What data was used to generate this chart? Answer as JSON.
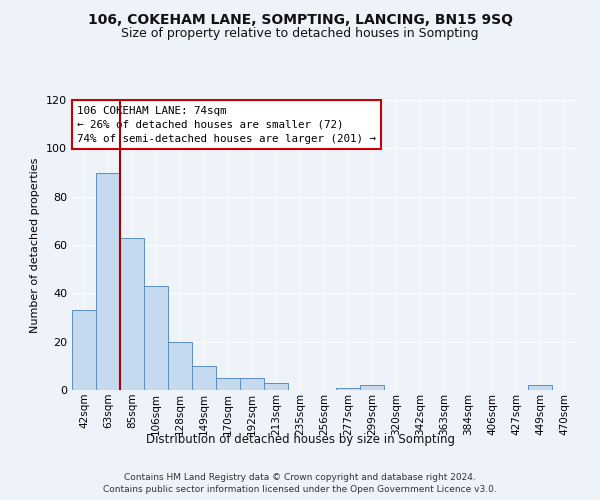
{
  "title1": "106, COKEHAM LANE, SOMPTING, LANCING, BN15 9SQ",
  "title2": "Size of property relative to detached houses in Sompting",
  "xlabel": "Distribution of detached houses by size in Sompting",
  "ylabel": "Number of detached properties",
  "categories": [
    "42sqm",
    "63sqm",
    "85sqm",
    "106sqm",
    "128sqm",
    "149sqm",
    "170sqm",
    "192sqm",
    "213sqm",
    "235sqm",
    "256sqm",
    "277sqm",
    "299sqm",
    "320sqm",
    "342sqm",
    "363sqm",
    "384sqm",
    "406sqm",
    "427sqm",
    "449sqm",
    "470sqm"
  ],
  "values": [
    33,
    90,
    63,
    43,
    20,
    10,
    5,
    5,
    3,
    0,
    0,
    1,
    2,
    0,
    0,
    0,
    0,
    0,
    0,
    2,
    0
  ],
  "bar_color": "#c5d9ef",
  "bar_edge_color": "#5a8fc2",
  "annotation_text": "106 COKEHAM LANE: 74sqm\n← 26% of detached houses are smaller (72)\n74% of semi-detached houses are larger (201) →",
  "vline_index": 1.5,
  "ylim": [
    0,
    120
  ],
  "yticks": [
    0,
    20,
    40,
    60,
    80,
    100,
    120
  ],
  "footer_line1": "Contains HM Land Registry data © Crown copyright and database right 2024.",
  "footer_line2": "Contains public sector information licensed under the Open Government Licence v3.0.",
  "background_color": "#eef2f9",
  "grid_color": "#ffffff",
  "annotation_box_color": "#ffffff",
  "annotation_box_edge": "#cc0000",
  "vline_color": "#aa0000",
  "title1_fontsize": 10,
  "title2_fontsize": 9
}
